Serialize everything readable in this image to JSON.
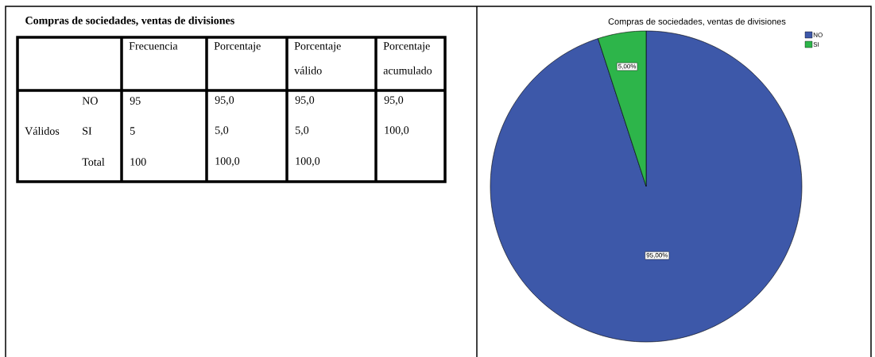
{
  "chart_data": [
    {
      "type": "other",
      "title": "Compras de sociedades, ventas de divisiones",
      "annotations": [
        "Frecuencia",
        "Porcentaje",
        "Porcentaje válido",
        "Porcentaje acumulado",
        "Válidos",
        "NO",
        "95",
        "95,0",
        "95,0",
        "95,0",
        "SI",
        "5",
        "5,0",
        "5,0",
        "100,0",
        "Total",
        "100",
        "100,0",
        "100,0"
      ]
    },
    {
      "type": "pie",
      "title": "Compras de sociedades, ventas de divisiones",
      "categories": [
        "NO",
        "SI"
      ],
      "values": [
        95,
        5
      ],
      "colors": [
        "#3d58a9",
        "#2db54a"
      ],
      "value_labels": [
        "95,00%",
        "5,00%"
      ],
      "legend": "top right"
    }
  ]
}
